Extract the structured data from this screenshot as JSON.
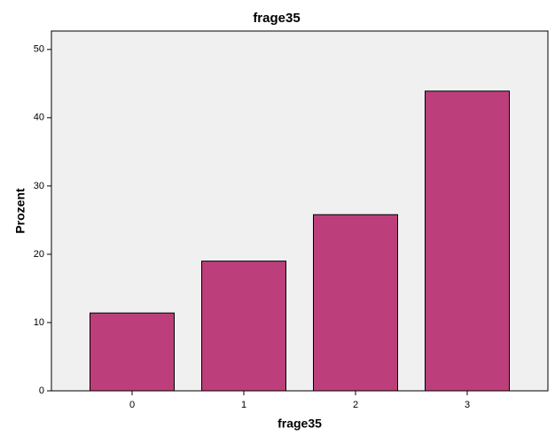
{
  "chart_data": {
    "type": "bar",
    "title": "frage35",
    "x_label": "frage35",
    "y_label": "Prozent",
    "categories": [
      "0",
      "1",
      "2",
      "3"
    ],
    "values": [
      11.4,
      19.0,
      25.8,
      43.9
    ],
    "color": "#bc3f7c",
    "ylim": [
      0,
      52.7
    ],
    "yticks": [
      0,
      10,
      20,
      30,
      40,
      50
    ],
    "grid": false
  }
}
